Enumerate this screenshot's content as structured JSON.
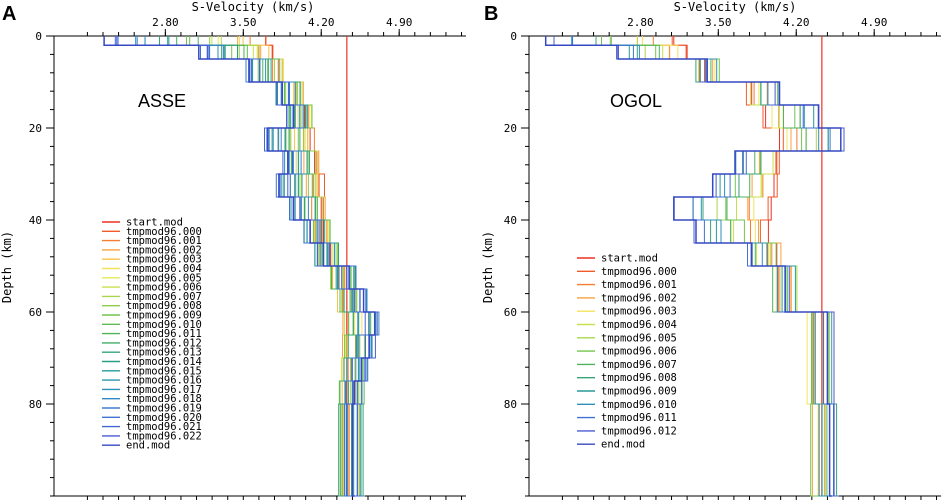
{
  "chart_data": [
    {
      "type": "line",
      "panel": "A",
      "station": "ASSE",
      "title": "S-Velocity (km/s)",
      "xlabel": "S-Velocity (km/s)",
      "ylabel": "Depth (km)",
      "xlim": [
        1.8,
        5.5
      ],
      "ylim": [
        0,
        100
      ],
      "xticks": [
        "2.80",
        "3.50",
        "4.20",
        "4.90"
      ],
      "yticks": [
        "0",
        "20",
        "40",
        "60",
        "80"
      ],
      "reference_velocity": 4.43,
      "legend": {
        "placement": "lower-left",
        "entries": [
          "start.mod",
          "tmpmod96.000",
          "tmpmod96.001",
          "tmpmod96.002",
          "tmpmod96.003",
          "tmpmod96.004",
          "tmpmod96.005",
          "tmpmod96.006",
          "tmpmod96.007",
          "tmpmod96.008",
          "tmpmod96.009",
          "tmpmod96.010",
          "tmpmod96.011",
          "tmpmod96.012",
          "tmpmod96.013",
          "tmpmod96.014",
          "tmpmod96.015",
          "tmpmod96.016",
          "tmpmod96.017",
          "tmpmod96.018",
          "tmpmod96.019",
          "tmpmod96.020",
          "tmpmod96.021",
          "tmpmod96.022",
          "end.mod"
        ],
        "colors": [
          "#ee3124",
          "#f05a28",
          "#f47d30",
          "#f9a03f",
          "#fbc04b",
          "#f3e35b",
          "#e5ea55",
          "#c8e24f",
          "#a8d84a",
          "#8cce48",
          "#74c44c",
          "#5fbb53",
          "#4fb35c",
          "#41ab68",
          "#36a477",
          "#2d9e88",
          "#289a99",
          "#2a96aa",
          "#2e8fba",
          "#3388c6",
          "#3a7ecf",
          "#3f72d3",
          "#4366d4",
          "#485bd2",
          "#3449c2"
        ]
      },
      "series": [
        {
          "name": "start.mod",
          "depth": [
            0,
            5,
            10,
            15,
            20,
            30,
            40,
            50,
            60,
            80,
            100
          ],
          "velocity": [
            3.7,
            3.85,
            3.98,
            4.05,
            4.1,
            4.18,
            4.22,
            4.35,
            4.43,
            4.45,
            4.47
          ]
        },
        {
          "name": "end.mod",
          "depth": [
            0,
            2,
            5,
            10,
            15,
            20,
            25,
            30,
            35,
            40,
            45,
            50,
            55,
            60,
            65,
            70,
            75,
            80,
            100
          ],
          "velocity": [
            2.25,
            3.1,
            3.55,
            3.85,
            3.95,
            3.72,
            3.9,
            3.82,
            3.95,
            4.1,
            4.22,
            4.45,
            4.58,
            4.68,
            4.63,
            4.56,
            4.5,
            4.48,
            4.5
          ]
        }
      ]
    },
    {
      "type": "line",
      "panel": "B",
      "station": "OGOL",
      "title": "S-Velocity (km/s)",
      "xlabel": "S-Velocity (km/s)",
      "ylabel": "Depth (km)",
      "xlim": [
        1.8,
        5.5
      ],
      "ylim": [
        0,
        100
      ],
      "xticks": [
        "2.80",
        "3.50",
        "4.20",
        "4.90"
      ],
      "yticks": [
        "0",
        "20",
        "40",
        "60",
        "80"
      ],
      "reference_velocity": 4.43,
      "legend": {
        "placement": "lower-left",
        "entries": [
          "start.mod",
          "tmpmod96.000",
          "tmpmod96.001",
          "tmpmod96.002",
          "tmpmod96.003",
          "tmpmod96.004",
          "tmpmod96.005",
          "tmpmod96.006",
          "tmpmod96.007",
          "tmpmod96.008",
          "tmpmod96.009",
          "tmpmod96.010",
          "tmpmod96.011",
          "tmpmod96.012",
          "end.mod"
        ],
        "colors": [
          "#ee3124",
          "#f05a28",
          "#f47d30",
          "#f9a03f",
          "#f3e35b",
          "#c8e24f",
          "#a8d84a",
          "#74c44c",
          "#4fb35c",
          "#36a477",
          "#289a99",
          "#2e8fba",
          "#3f72d3",
          "#485bd2",
          "#3449c2"
        ]
      },
      "series": [
        {
          "name": "start.mod",
          "depth": [
            0,
            5,
            10,
            20,
            30,
            40,
            50,
            60,
            80,
            100
          ],
          "velocity": [
            3.1,
            3.4,
            3.8,
            4.05,
            4.0,
            3.95,
            4.1,
            4.35,
            4.4,
            4.42
          ]
        },
        {
          "name": "end.mod",
          "depth": [
            0,
            2,
            5,
            10,
            15,
            20,
            25,
            30,
            35,
            40,
            45,
            50,
            60,
            80,
            100
          ],
          "velocity": [
            1.95,
            2.6,
            3.4,
            4.05,
            4.4,
            4.6,
            3.65,
            3.45,
            3.1,
            3.3,
            3.8,
            4.1,
            4.48,
            4.5,
            4.52
          ]
        }
      ]
    }
  ]
}
